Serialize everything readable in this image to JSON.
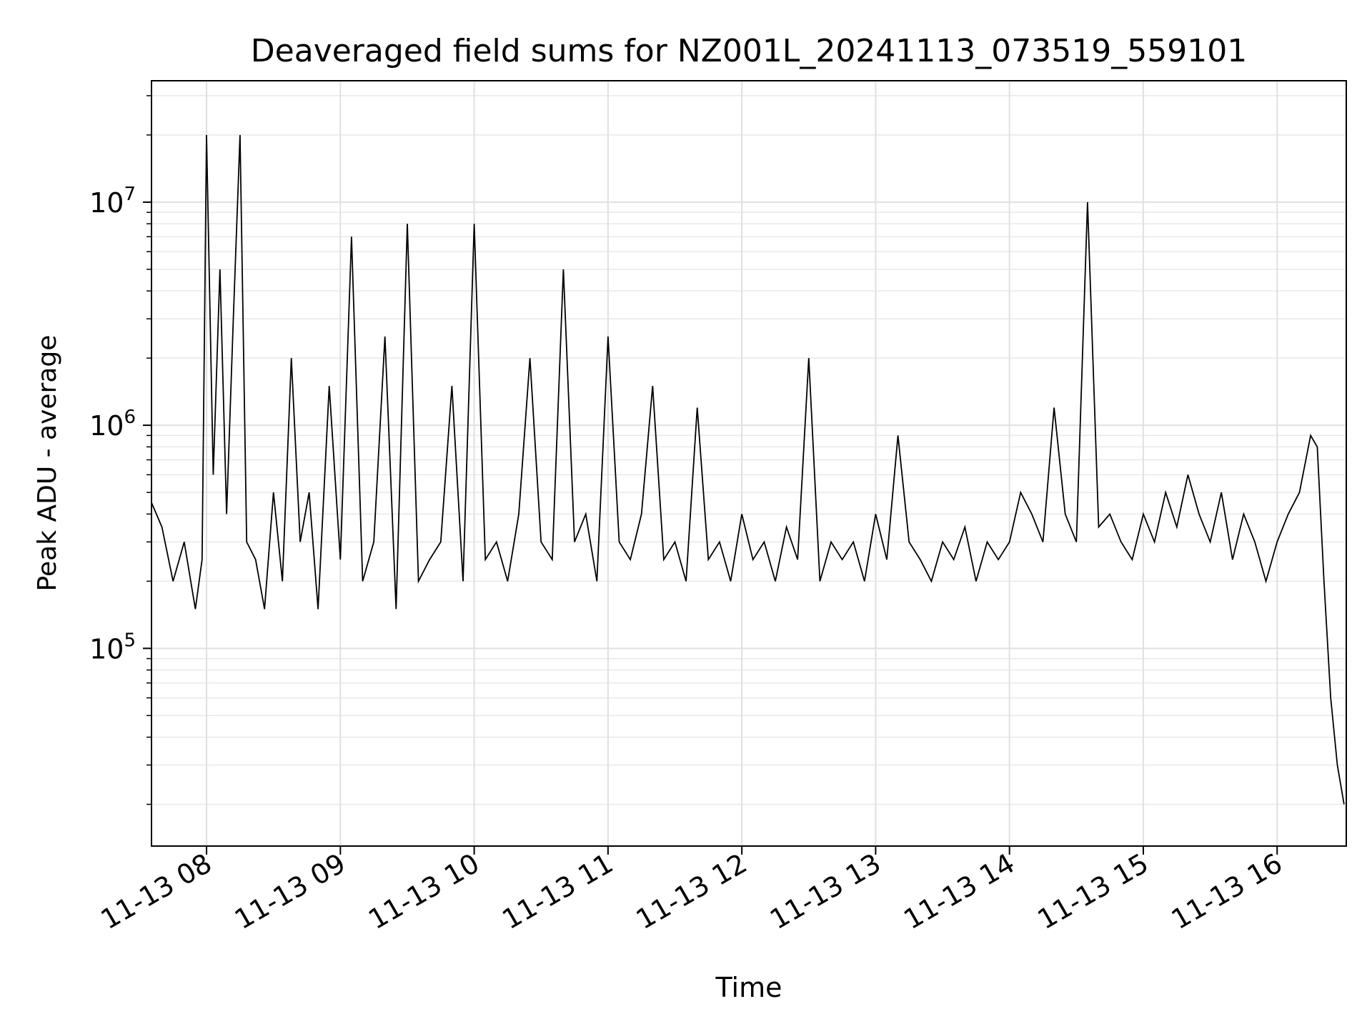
{
  "chart_data": {
    "type": "line",
    "title": "Deaveraged field sums for NZ001L_20241113_073519_559101",
    "xlabel": "Time",
    "ylabel": "Peak ADU - average",
    "yscale": "log",
    "ylim": [
      13000,
      35000000
    ],
    "xlim": [
      "2024-11-13 07:35:19",
      "2024-11-13 16:31:00"
    ],
    "grid": "major and minor, both axes",
    "legend": "none",
    "line_color": "#000000",
    "x_ticks": [
      {
        "value": "2024-11-13 08:00",
        "label": "11-13 08"
      },
      {
        "value": "2024-11-13 09:00",
        "label": "11-13 09"
      },
      {
        "value": "2024-11-13 10:00",
        "label": "11-13 10"
      },
      {
        "value": "2024-11-13 11:00",
        "label": "11-13 11"
      },
      {
        "value": "2024-11-13 12:00",
        "label": "11-13 12"
      },
      {
        "value": "2024-11-13 13:00",
        "label": "11-13 13"
      },
      {
        "value": "2024-11-13 14:00",
        "label": "11-13 14"
      },
      {
        "value": "2024-11-13 15:00",
        "label": "11-13 15"
      },
      {
        "value": "2024-11-13 16:00",
        "label": "11-13 16"
      }
    ],
    "y_ticks": [
      {
        "value": 100000,
        "base": "10",
        "exp": "5"
      },
      {
        "value": 1000000,
        "base": "10",
        "exp": "6"
      },
      {
        "value": 10000000,
        "base": "10",
        "exp": "7"
      }
    ],
    "series": [
      {
        "x": [
          "2024-11-13 07:35",
          "2024-11-13 07:40",
          "2024-11-13 07:45",
          "2024-11-13 07:50",
          "2024-11-13 07:55",
          "2024-11-13 07:58",
          "2024-11-13 08:00",
          "2024-11-13 08:03",
          "2024-11-13 08:06",
          "2024-11-13 08:09",
          "2024-11-13 08:12",
          "2024-11-13 08:15",
          "2024-11-13 08:18",
          "2024-11-13 08:22",
          "2024-11-13 08:26",
          "2024-11-13 08:30",
          "2024-11-13 08:34",
          "2024-11-13 08:38",
          "2024-11-13 08:42",
          "2024-11-13 08:46",
          "2024-11-13 08:50",
          "2024-11-13 08:55",
          "2024-11-13 09:00",
          "2024-11-13 09:05",
          "2024-11-13 09:10",
          "2024-11-13 09:15",
          "2024-11-13 09:20",
          "2024-11-13 09:25",
          "2024-11-13 09:30",
          "2024-11-13 09:35",
          "2024-11-13 09:40",
          "2024-11-13 09:45",
          "2024-11-13 09:50",
          "2024-11-13 09:55",
          "2024-11-13 10:00",
          "2024-11-13 10:05",
          "2024-11-13 10:10",
          "2024-11-13 10:15",
          "2024-11-13 10:20",
          "2024-11-13 10:25",
          "2024-11-13 10:30",
          "2024-11-13 10:35",
          "2024-11-13 10:40",
          "2024-11-13 10:45",
          "2024-11-13 10:50",
          "2024-11-13 10:55",
          "2024-11-13 11:00",
          "2024-11-13 11:05",
          "2024-11-13 11:10",
          "2024-11-13 11:15",
          "2024-11-13 11:20",
          "2024-11-13 11:25",
          "2024-11-13 11:30",
          "2024-11-13 11:35",
          "2024-11-13 11:40",
          "2024-11-13 11:45",
          "2024-11-13 11:50",
          "2024-11-13 11:55",
          "2024-11-13 12:00",
          "2024-11-13 12:05",
          "2024-11-13 12:10",
          "2024-11-13 12:15",
          "2024-11-13 12:20",
          "2024-11-13 12:25",
          "2024-11-13 12:30",
          "2024-11-13 12:35",
          "2024-11-13 12:40",
          "2024-11-13 12:45",
          "2024-11-13 12:50",
          "2024-11-13 12:55",
          "2024-11-13 13:00",
          "2024-11-13 13:05",
          "2024-11-13 13:10",
          "2024-11-13 13:15",
          "2024-11-13 13:20",
          "2024-11-13 13:25",
          "2024-11-13 13:30",
          "2024-11-13 13:35",
          "2024-11-13 13:40",
          "2024-11-13 13:45",
          "2024-11-13 13:50",
          "2024-11-13 13:55",
          "2024-11-13 14:00",
          "2024-11-13 14:05",
          "2024-11-13 14:10",
          "2024-11-13 14:15",
          "2024-11-13 14:20",
          "2024-11-13 14:25",
          "2024-11-13 14:30",
          "2024-11-13 14:35",
          "2024-11-13 14:40",
          "2024-11-13 14:45",
          "2024-11-13 14:50",
          "2024-11-13 14:55",
          "2024-11-13 15:00",
          "2024-11-13 15:05",
          "2024-11-13 15:10",
          "2024-11-13 15:15",
          "2024-11-13 15:20",
          "2024-11-13 15:25",
          "2024-11-13 15:30",
          "2024-11-13 15:35",
          "2024-11-13 15:40",
          "2024-11-13 15:45",
          "2024-11-13 15:50",
          "2024-11-13 15:55",
          "2024-11-13 16:00",
          "2024-11-13 16:05",
          "2024-11-13 16:10",
          "2024-11-13 16:15",
          "2024-11-13 16:18",
          "2024-11-13 16:21",
          "2024-11-13 16:24",
          "2024-11-13 16:27",
          "2024-11-13 16:30"
        ],
        "y": [
          450000,
          350000,
          200000,
          300000,
          150000,
          250000,
          20000000,
          600000,
          5000000,
          400000,
          3000000,
          20000000,
          300000,
          250000,
          150000,
          500000,
          200000,
          2000000,
          300000,
          500000,
          150000,
          1500000,
          250000,
          7000000,
          200000,
          300000,
          2500000,
          150000,
          8000000,
          200000,
          250000,
          300000,
          1500000,
          200000,
          8000000,
          250000,
          300000,
          200000,
          400000,
          2000000,
          300000,
          250000,
          5000000,
          300000,
          400000,
          200000,
          2500000,
          300000,
          250000,
          400000,
          1500000,
          250000,
          300000,
          200000,
          1200000,
          250000,
          300000,
          200000,
          400000,
          250000,
          300000,
          200000,
          350000,
          250000,
          2000000,
          200000,
          300000,
          250000,
          300000,
          200000,
          400000,
          250000,
          900000,
          300000,
          250000,
          200000,
          300000,
          250000,
          350000,
          200000,
          300000,
          250000,
          300000,
          500000,
          400000,
          300000,
          1200000,
          400000,
          300000,
          10000000,
          350000,
          400000,
          300000,
          250000,
          400000,
          300000,
          500000,
          350000,
          600000,
          400000,
          300000,
          500000,
          250000,
          400000,
          300000,
          200000,
          300000,
          400000,
          500000,
          900000,
          800000,
          200000,
          60000,
          30000,
          20000
        ]
      }
    ]
  }
}
